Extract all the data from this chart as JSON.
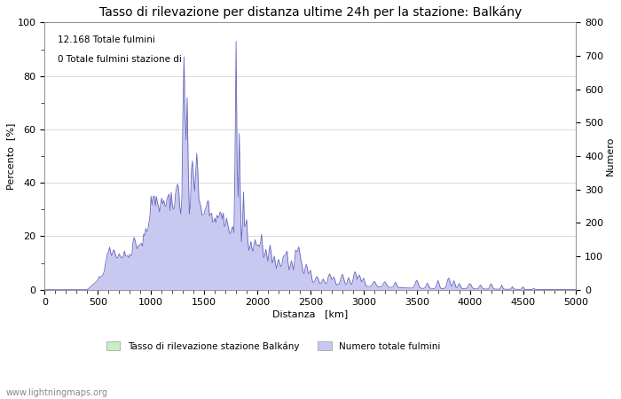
{
  "title": "Tasso di rilevazione per distanza ultime 24h per la stazione: Balkány",
  "xlabel": "Distanza   [km]",
  "ylabel_left": "Percento  [%]",
  "ylabel_right": "Numero",
  "annotation_line1": "12.168 Totale fulmini",
  "annotation_line2": "0 Totale fulmini stazione di",
  "legend_label1": "Tasso di rilevazione stazione Balkány",
  "legend_label2": "Numero totale fulmini",
  "watermark": "www.lightningmaps.org",
  "xlim": [
    0,
    5000
  ],
  "ylim_left": [
    0,
    100
  ],
  "ylim_right": [
    0,
    800
  ],
  "xticks": [
    0,
    500,
    1000,
    1500,
    2000,
    2500,
    3000,
    3500,
    4000,
    4500,
    5000
  ],
  "yticks_left": [
    0,
    20,
    40,
    60,
    80,
    100
  ],
  "yticks_right": [
    0,
    100,
    200,
    300,
    400,
    500,
    600,
    700,
    800
  ],
  "color_green": "#c8eec8",
  "color_blue": "#c8c8f0",
  "color_line_blue": "#6666bb",
  "background": "#ffffff",
  "grid_color": "#cccccc",
  "title_fontsize": 10,
  "axis_fontsize": 8,
  "tick_fontsize": 8
}
